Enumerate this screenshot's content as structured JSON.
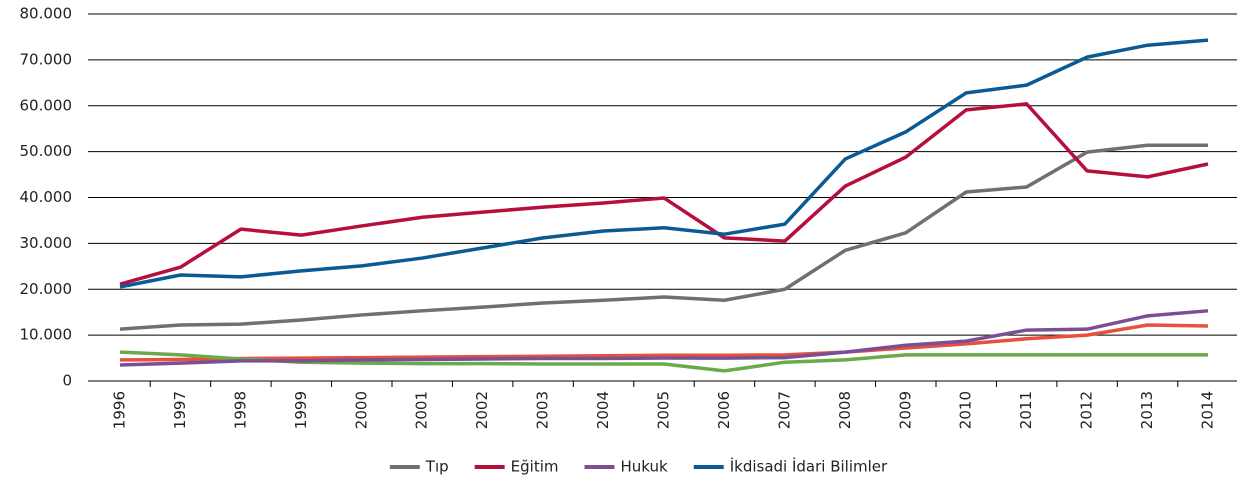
{
  "chart_data": {
    "type": "line",
    "categories": [
      "1996",
      "1997",
      "1998",
      "1999",
      "2000",
      "2001",
      "2002",
      "2003",
      "2004",
      "2005",
      "2006",
      "2007",
      "2008",
      "2009",
      "2010",
      "2011",
      "2012",
      "2013",
      "2014"
    ],
    "series": [
      {
        "name": "Tıp",
        "color": "#707070",
        "values": [
          11300,
          12200,
          12400,
          13300,
          14400,
          15300,
          16100,
          17000,
          17600,
          18300,
          17600,
          20000,
          28500,
          32300,
          41200,
          42300,
          49900,
          51400,
          51400
        ]
      },
      {
        "name": "Eğitim",
        "color": "#b5103c",
        "values": [
          21100,
          24800,
          33100,
          31800,
          33800,
          35700,
          36800,
          37900,
          38800,
          39900,
          31200,
          30500,
          42500,
          48800,
          59100,
          60400,
          45800,
          44500,
          47300
        ]
      },
      {
        "name": "Hukuk",
        "color": "#7b4f94",
        "values": [
          3500,
          3900,
          4400,
          4400,
          4600,
          4700,
          4800,
          4900,
          4900,
          5000,
          5000,
          5100,
          6300,
          7800,
          8700,
          11100,
          11300,
          14200,
          15300
        ]
      },
      {
        "name": "İkdisadi İdari Bilimler",
        "color": "#0a5a96",
        "values": [
          20500,
          23100,
          22700,
          24000,
          25100,
          26800,
          29000,
          31200,
          32700,
          33400,
          32000,
          34200,
          48400,
          54300,
          62800,
          64500,
          70600,
          73200,
          74300
        ]
      },
      {
        "color": "#e8503e",
        "values": [
          4600,
          4700,
          4900,
          5000,
          5100,
          5200,
          5300,
          5400,
          5500,
          5600,
          5600,
          5700,
          6300,
          7200,
          8100,
          9200,
          10000,
          12200,
          12000
        ]
      },
      {
        "color": "#6aaa4a",
        "values": [
          6300,
          5700,
          4800,
          4100,
          3900,
          3800,
          3800,
          3700,
          3700,
          3700,
          2200,
          4100,
          4600,
          5700,
          5700,
          5700,
          5700,
          5700,
          5700
        ]
      }
    ],
    "ylim": [
      0,
      80000
    ],
    "yticks": [
      0,
      {
        "value": 10000,
        "label": "10.000"
      },
      {
        "value": 20000,
        "label": "20.000"
      },
      {
        "value": 30000,
        "label": "30.000"
      },
      {
        "value": 40000,
        "label": "40.000"
      },
      {
        "value": 50000,
        "label": "50.000"
      },
      {
        "value": 60000,
        "label": "60.000"
      },
      {
        "value": 70000,
        "label": "70.000"
      },
      {
        "value": 80000,
        "label": "80.000"
      }
    ],
    "grid": true
  }
}
